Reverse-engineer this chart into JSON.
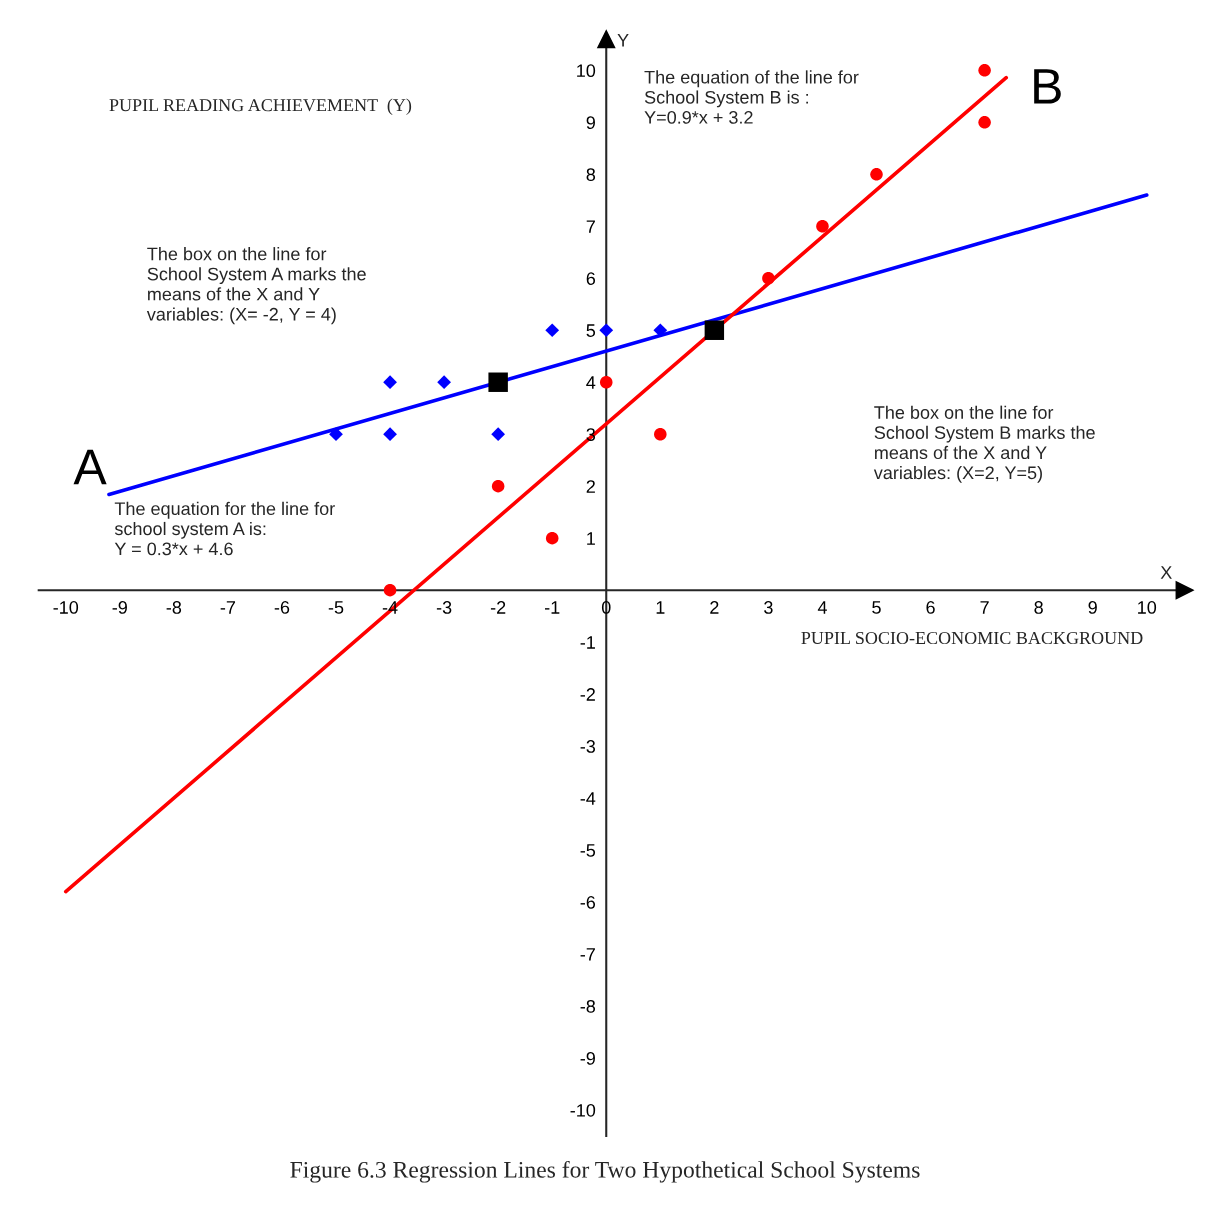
{
  "chart_data": {
    "type": "scatter",
    "title": "Figure 6.3 Regression Lines for Two Hypothetical School Systems",
    "xlabel": "PUPIL SOCIO-ECONOMIC BACKGROUND",
    "ylabel": "PUPIL READING ACHIEVEMENT  (Y)",
    "annotations": [
      "X",
      "Y",
      "The box on the line for\nSchool System A marks the\nmeans of the X and Y\nvariables: (X= -2, Y = 4)",
      "The equation for the line for\nschool system A is:\nY = 0.3*x + 4.6",
      "The equation of the line for\nSchool System B is :\nY=0.9*x + 3.2",
      "The box on the line for\nSchool System B marks the\nmeans of the X and Y\nvariables: (X=2, Y=5)"
    ],
    "series": [
      {
        "type": "line",
        "name": "A",
        "color": "#0000ff",
        "marker": "none",
        "x": [
          -9.2,
          10
        ],
        "values": [
          1.84,
          7.6
        ]
      },
      {
        "type": "line",
        "name": "B",
        "color": "#ff0000",
        "marker": "none",
        "x": [
          7.4,
          -10
        ],
        "values": [
          9.86,
          -5.8
        ]
      },
      {
        "color": "#0000ff",
        "marker": "diamond",
        "x": [
          -5,
          -4,
          -4,
          -3,
          -2,
          -1,
          0,
          1
        ],
        "values": [
          3,
          4,
          3,
          4,
          3,
          5,
          5,
          5
        ]
      },
      {
        "color": "#ff0000",
        "marker": "circle",
        "x": [
          -4,
          -2,
          -1,
          0,
          1,
          3,
          4,
          5,
          7,
          7
        ],
        "values": [
          0,
          2,
          1,
          4,
          3,
          6,
          7,
          8,
          10,
          9
        ]
      },
      {
        "color": "#000000",
        "marker": "square",
        "x": [
          -2,
          2
        ],
        "values": [
          4,
          5
        ]
      }
    ],
    "xlim": [
      -10.5,
      10.7
    ],
    "ylim": [
      -10.5,
      10.6
    ],
    "xticks": [
      -10,
      -9,
      -8,
      -7,
      -6,
      -5,
      -4,
      -3,
      -2,
      -1,
      0,
      1,
      2,
      3,
      4,
      5,
      6,
      7,
      8,
      9,
      10
    ],
    "yticks": [
      -10,
      -9,
      -8,
      -7,
      -6,
      -5,
      -4,
      -3,
      -2,
      -1,
      1,
      2,
      3,
      4,
      5,
      6,
      7,
      8,
      9,
      10
    ],
    "grid": false,
    "legend": false
  }
}
